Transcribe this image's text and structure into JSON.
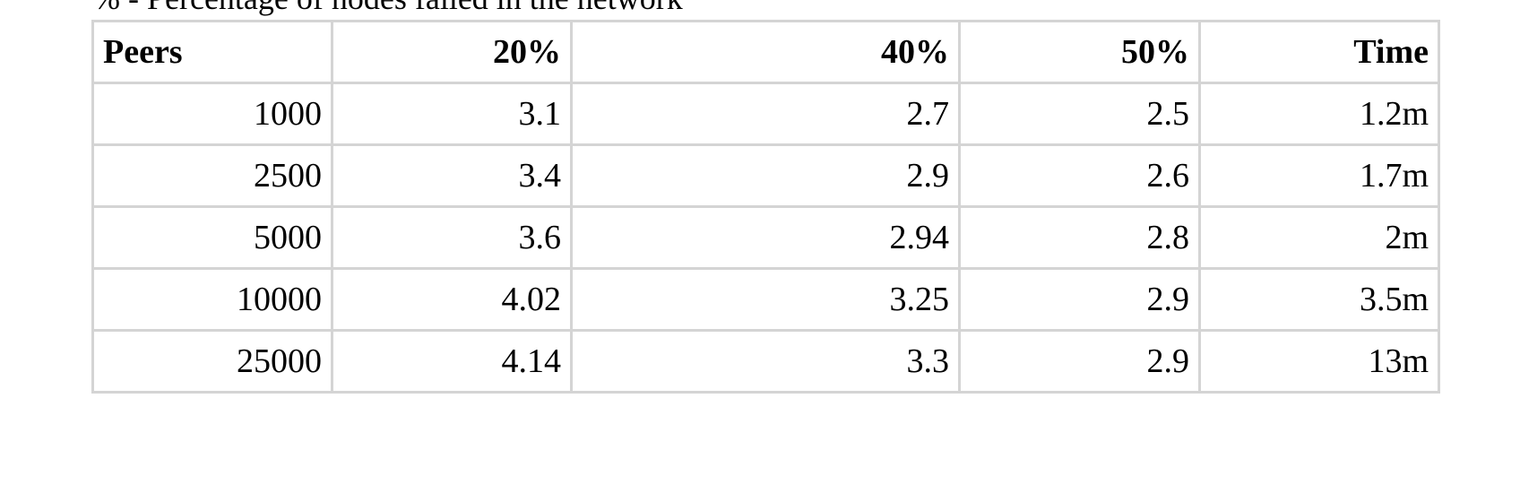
{
  "caption": "% - Percentage of nodes failed in the network",
  "table": {
    "headers": [
      "Peers",
      "20%",
      "40%",
      "50%",
      "Time"
    ],
    "rows": [
      [
        "1000",
        "3.1",
        "2.7",
        "2.5",
        "1.2m"
      ],
      [
        "2500",
        "3.4",
        "2.9",
        "2.6",
        "1.7m"
      ],
      [
        "5000",
        "3.6",
        "2.94",
        "2.8",
        "2m"
      ],
      [
        "10000",
        "4.02",
        "3.25",
        "2.9",
        "3.5m"
      ],
      [
        "25000",
        "4.14",
        "3.3",
        "2.9",
        "13m"
      ]
    ]
  }
}
